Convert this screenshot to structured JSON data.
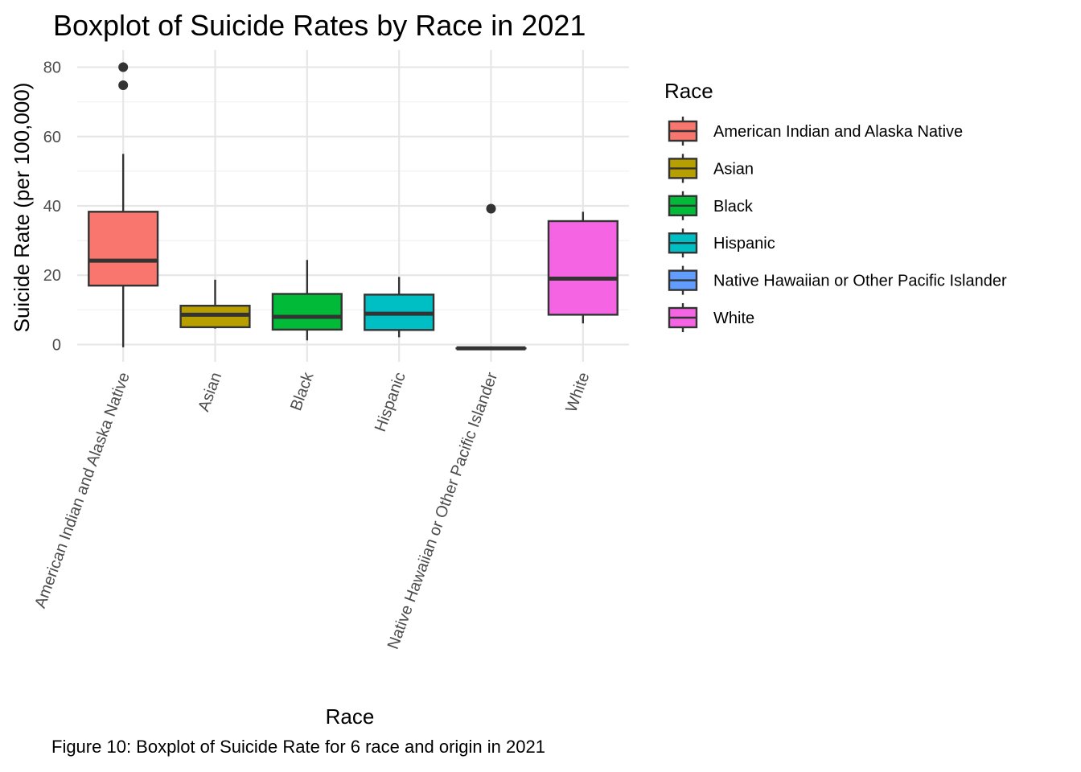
{
  "chart_data": {
    "type": "boxplot",
    "title": "Boxplot of Suicide Rates by Race in 2021",
    "xlabel": "Race",
    "ylabel": "Suicide Rate (per 100,000)",
    "ylim": [
      -5,
      85
    ],
    "yticks": [
      0,
      20,
      40,
      60,
      80
    ],
    "grid": true,
    "legend_title": "Race",
    "legend_placement": "right",
    "categories": [
      "American Indian and Alaska Native",
      "Asian",
      "Black",
      "Hispanic",
      "Native Hawaiian or Other Pacific Islander",
      "White"
    ],
    "boxes": [
      {
        "name": "American Indian and Alaska Native",
        "color": "#F8766D",
        "whisker_low": -0.8,
        "q1": 17.0,
        "median": 24.2,
        "q3": 38.3,
        "whisker_high": 55.0,
        "outliers": [
          80.0,
          74.8
        ]
      },
      {
        "name": "Asian",
        "color": "#B79F00",
        "whisker_low": 4.6,
        "q1": 5.0,
        "median": 8.6,
        "q3": 11.2,
        "whisker_high": 18.7,
        "outliers": []
      },
      {
        "name": "Black",
        "color": "#00BA38",
        "whisker_low": 1.2,
        "q1": 4.3,
        "median": 8.0,
        "q3": 14.6,
        "whisker_high": 24.4,
        "outliers": []
      },
      {
        "name": "Hispanic",
        "color": "#00BFC4",
        "whisker_low": 2.1,
        "q1": 4.2,
        "median": 8.9,
        "q3": 14.4,
        "whisker_high": 19.5,
        "outliers": []
      },
      {
        "name": "Native Hawaiian or Other Pacific Islander",
        "color": "#619CFF",
        "whisker_low": -1.1,
        "q1": -1.1,
        "median": -1.1,
        "q3": -1.1,
        "whisker_high": -1.1,
        "outliers": [
          39.2
        ]
      },
      {
        "name": "White",
        "color": "#F564E3",
        "whisker_low": 6.1,
        "q1": 8.6,
        "median": 19.0,
        "q3": 35.6,
        "whisker_high": 38.3,
        "outliers": []
      }
    ]
  },
  "caption": "Figure 10: Boxplot of Suicide Rate for 6 race and origin in 2021"
}
